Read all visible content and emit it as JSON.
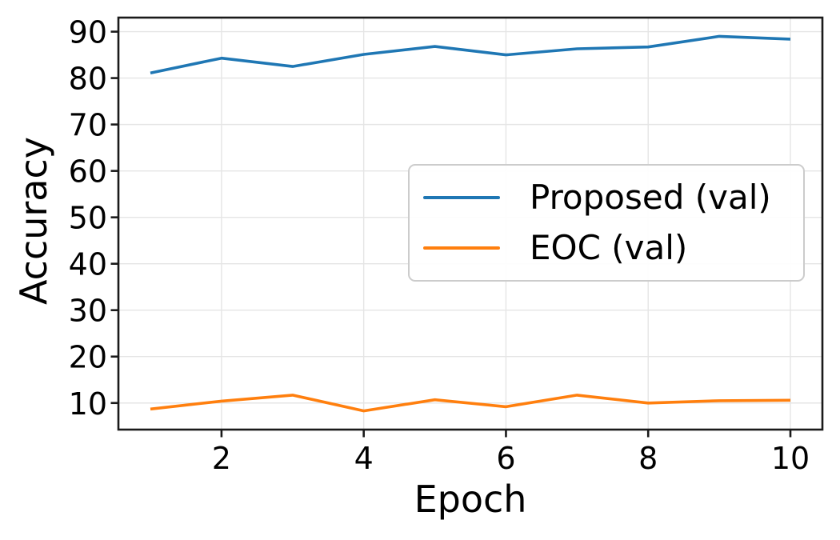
{
  "chart_data": {
    "type": "line",
    "title": "",
    "xlabel": "Epoch",
    "ylabel": "Accuracy",
    "x": [
      1,
      2,
      3,
      4,
      5,
      6,
      7,
      8,
      9,
      10
    ],
    "series": [
      {
        "name": "Proposed (val)",
        "color": "#1f77b4",
        "values": [
          81.1,
          84.3,
          82.5,
          85.1,
          86.8,
          85.0,
          86.3,
          86.7,
          89.0,
          88.4
        ]
      },
      {
        "name": "EOC (val)",
        "color": "#ff7f0e",
        "values": [
          8.7,
          10.4,
          11.7,
          8.3,
          10.7,
          9.2,
          11.7,
          10.0,
          10.5,
          10.6
        ]
      }
    ],
    "xticks": [
      2,
      4,
      6,
      8,
      10
    ],
    "yticks": [
      10,
      20,
      30,
      40,
      50,
      60,
      70,
      80,
      90
    ],
    "xlim": [
      0.55,
      10.45
    ],
    "ylim": [
      4.27,
      93.03
    ],
    "grid": true,
    "legend_position": "center right"
  },
  "style": {
    "background": "#ffffff",
    "grid_color": "#e5e5e5",
    "spine_color": "#1a1a1a",
    "text_color": "#000000",
    "legend_border": "#cccccc"
  }
}
